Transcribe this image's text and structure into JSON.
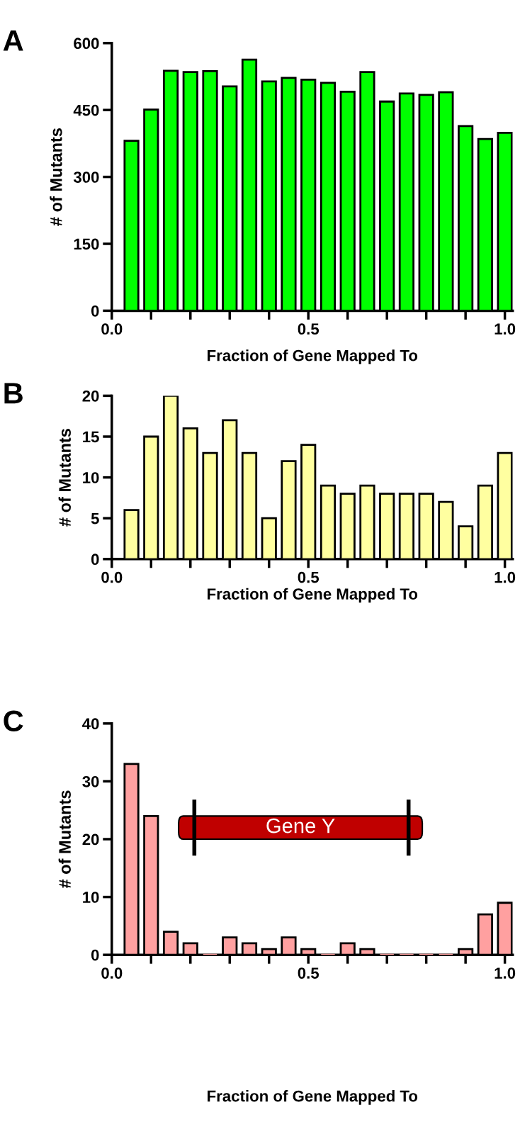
{
  "chart_data": [
    {
      "type": "bar",
      "title": "A",
      "xlabel": "Fraction of Gene Mapped To",
      "ylabel": "# of Mutants",
      "color": "#00ff00",
      "x": [
        0.05,
        0.1,
        0.15,
        0.2,
        0.25,
        0.3,
        0.35,
        0.4,
        0.45,
        0.5,
        0.55,
        0.6,
        0.65,
        0.7,
        0.75,
        0.8,
        0.85,
        0.9,
        0.95,
        1.0
      ],
      "values": [
        381,
        451,
        538,
        535,
        537,
        503,
        563,
        514,
        522,
        518,
        511,
        491,
        535,
        469,
        487,
        484,
        490,
        414,
        385,
        399
      ],
      "xlim": [
        0,
        1.02
      ],
      "ylim": [
        0,
        600
      ],
      "yticks": [
        0,
        150,
        300,
        450,
        600
      ],
      "xticks": [
        {
          "value": 0,
          "label": "0.0"
        },
        {
          "value": 0.1,
          "label": null
        },
        {
          "value": 0.2,
          "label": null
        },
        {
          "value": 0.3,
          "label": null
        },
        {
          "value": 0.4,
          "label": null
        },
        {
          "value": 0.5,
          "label": "0.5"
        },
        {
          "value": 0.6,
          "label": null
        },
        {
          "value": 0.7,
          "label": null
        },
        {
          "value": 0.8,
          "label": null
        },
        {
          "value": 0.9,
          "label": null
        },
        {
          "value": 1.0,
          "label": "1.0"
        }
      ]
    },
    {
      "type": "bar",
      "title": "B",
      "xlabel": "Fraction of Gene Mapped To",
      "ylabel": "# of Mutants",
      "color": "#ffffa0",
      "x": [
        0.05,
        0.1,
        0.15,
        0.2,
        0.25,
        0.3,
        0.35,
        0.4,
        0.45,
        0.5,
        0.55,
        0.6,
        0.65,
        0.7,
        0.75,
        0.8,
        0.85,
        0.9,
        0.95,
        1.0
      ],
      "values": [
        6,
        15,
        20,
        16,
        13,
        17,
        13,
        5,
        12,
        14,
        9,
        8,
        9,
        8,
        8,
        8,
        7,
        4,
        9,
        13
      ],
      "xlim": [
        0,
        1.02
      ],
      "ylim": [
        0,
        20
      ],
      "yticks": [
        0,
        5,
        10,
        15,
        20
      ],
      "xticks": [
        {
          "value": 0,
          "label": "0.0"
        },
        {
          "value": 0.1,
          "label": null
        },
        {
          "value": 0.2,
          "label": null
        },
        {
          "value": 0.3,
          "label": null
        },
        {
          "value": 0.4,
          "label": null
        },
        {
          "value": 0.5,
          "label": "0.5"
        },
        {
          "value": 0.6,
          "label": null
        },
        {
          "value": 0.7,
          "label": null
        },
        {
          "value": 0.8,
          "label": null
        },
        {
          "value": 0.9,
          "label": null
        },
        {
          "value": 1.0,
          "label": "1.0"
        }
      ]
    },
    {
      "type": "bar",
      "title": "C",
      "xlabel": "Fraction of Gene Mapped To",
      "ylabel": "# of Mutants",
      "color": "#ffa0a0",
      "x": [
        0.05,
        0.1,
        0.15,
        0.2,
        0.25,
        0.3,
        0.35,
        0.4,
        0.45,
        0.5,
        0.55,
        0.6,
        0.65,
        0.7,
        0.75,
        0.8,
        0.85,
        0.9,
        0.95,
        1.0
      ],
      "values": [
        33,
        24,
        4,
        2,
        0,
        3,
        2,
        1,
        3,
        1,
        0,
        2,
        1,
        0,
        0,
        0,
        0,
        1,
        7,
        9
      ],
      "xlim": [
        0,
        1.02
      ],
      "ylim": [
        0,
        40
      ],
      "yticks": [
        0,
        10,
        20,
        30,
        40
      ],
      "xticks": [
        {
          "value": 0,
          "label": "0.0"
        },
        {
          "value": 0.1,
          "label": null
        },
        {
          "value": 0.2,
          "label": null
        },
        {
          "value": 0.3,
          "label": null
        },
        {
          "value": 0.4,
          "label": null
        },
        {
          "value": 0.5,
          "label": "0.5"
        },
        {
          "value": 0.6,
          "label": null
        },
        {
          "value": 0.7,
          "label": null
        },
        {
          "value": 0.8,
          "label": null
        },
        {
          "value": 0.9,
          "label": null
        },
        {
          "value": 1.0,
          "label": "1.0"
        }
      ],
      "annotations": [
        "Gene Y"
      ]
    }
  ]
}
